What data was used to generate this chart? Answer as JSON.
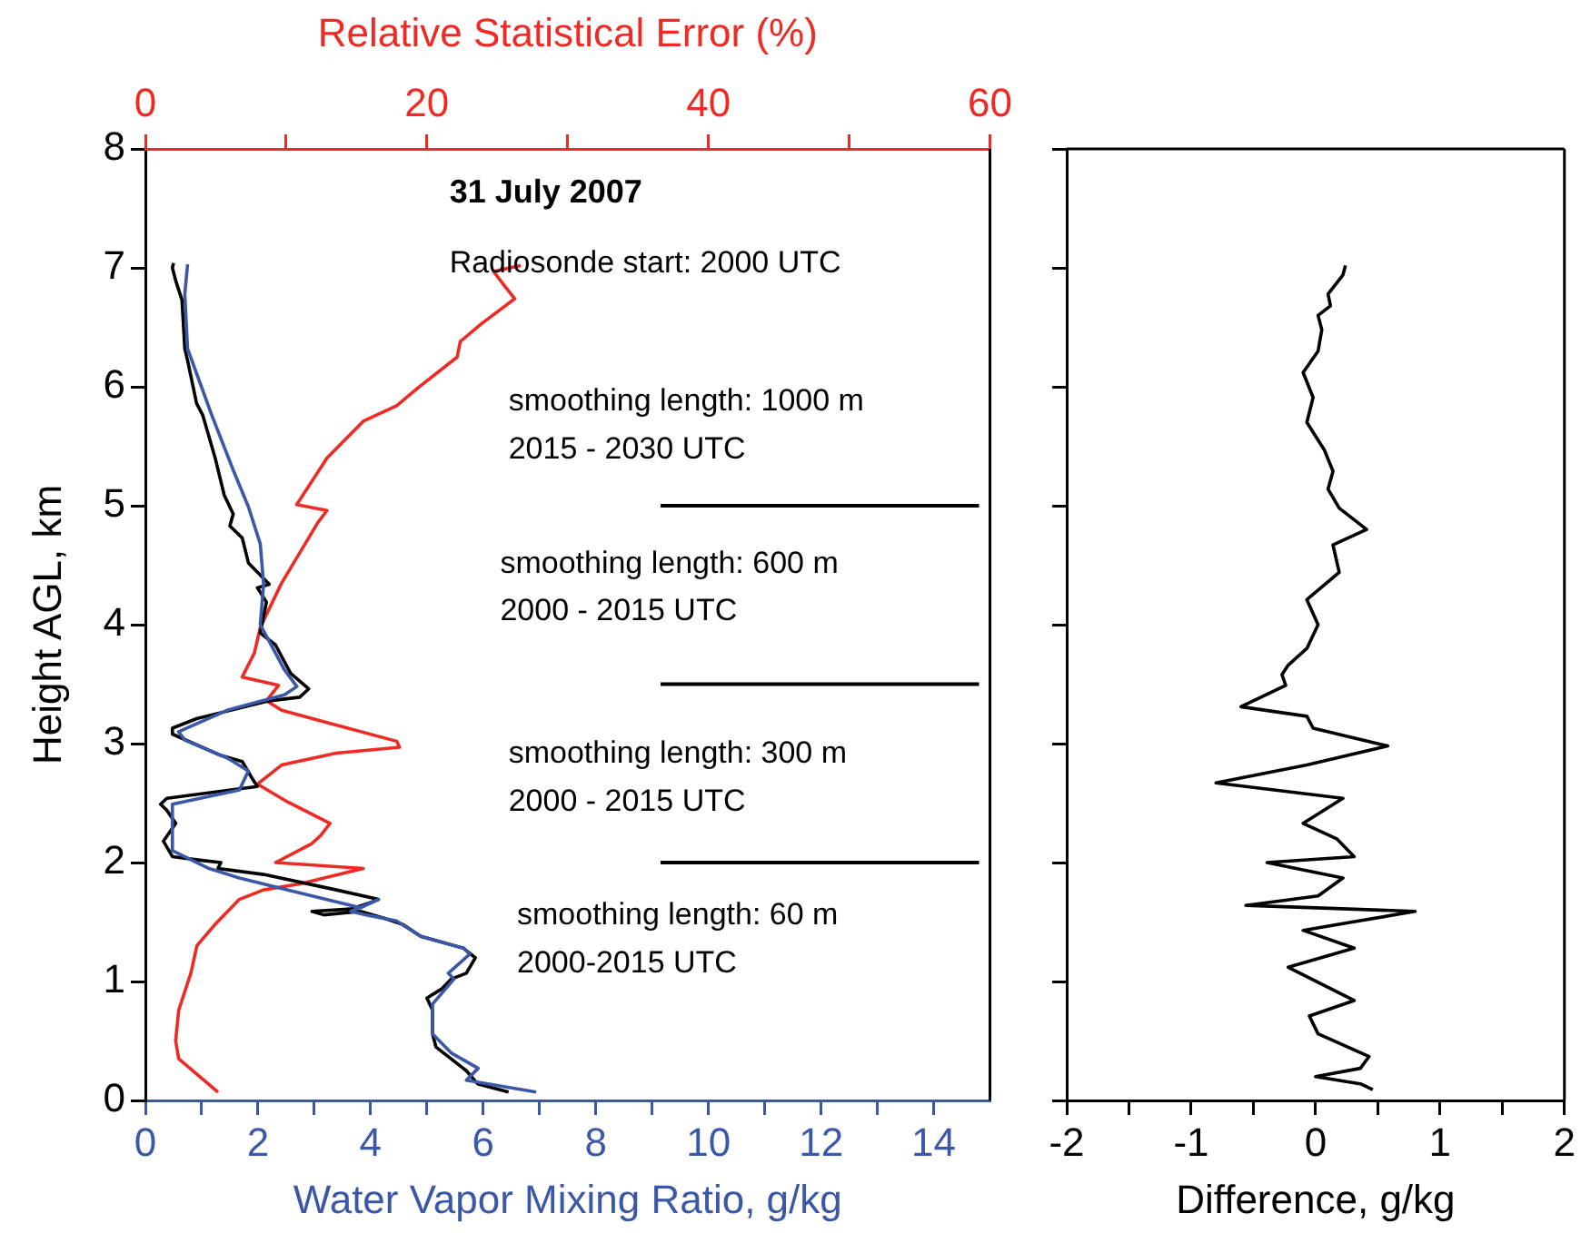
{
  "chart_data": [
    {
      "type": "line",
      "xlabel": "Water Vapor Mixing Ratio, g/kg",
      "x2label": "Relative Statistical Error (%)",
      "ylabel": "Height AGL, km",
      "xlim": [
        0,
        15
      ],
      "xticks": [
        0,
        {
          "value": 1,
          "label": null
        },
        2,
        {
          "value": 3,
          "label": null
        },
        4,
        {
          "value": 5,
          "label": null
        },
        6,
        {
          "value": 7,
          "label": null
        },
        8,
        {
          "value": 9,
          "label": null
        },
        10,
        {
          "value": 11,
          "label": null
        },
        12,
        {
          "value": 13,
          "label": null
        },
        14
      ],
      "x2lim": [
        0,
        60
      ],
      "x2ticks": [
        0,
        {
          "value": 10,
          "label": null
        },
        20,
        {
          "value": 30,
          "label": null
        },
        40,
        {
          "value": 50,
          "label": null
        },
        60
      ],
      "ylim": [
        0,
        8
      ],
      "yticks": [
        0,
        1,
        2,
        3,
        4,
        5,
        6,
        7,
        8
      ],
      "grid": false,
      "legend": false,
      "annotations": [
        "31 July 2007",
        "Radiosonde start: 2000 UTC",
        "smoothing length: 1000 m",
        "2015 - 2030 UTC",
        "smoothing length: 600 m",
        "2000 - 2015 UTC",
        "smoothing length: 300 m",
        "2000 - 2015 UTC",
        "smoothing length: 60 m",
        "2000-2015 UTC"
      ],
      "ref_lines": [
        {
          "axis": "y",
          "value": 5,
          "color": "#000000"
        },
        {
          "axis": "y",
          "value": 3.5,
          "color": "#000000"
        },
        {
          "axis": "y",
          "value": 2,
          "color": "#000000"
        }
      ],
      "series": [
        {
          "color": "#3b57a8",
          "x": [
            6.94,
            5.7,
            5.91,
            5.43,
            5.1,
            5.1,
            5.48,
            5.38,
            5.76,
            5.65,
            4.89,
            4.46,
            3.92,
            3.65,
            4.14,
            3.82,
            2.53,
            1.67,
            1.13,
            0.48,
            0.48,
            1.67,
            1.83,
            1.45,
            0.7,
            0.59,
            1.45,
            2.47,
            2.69,
            2.47,
            2.2,
            2.04,
            2.1,
            2.04,
            1.83,
            1.56,
            1.18,
            0.75,
            0.7,
            0.75
          ],
          "values": [
            0.07,
            0.17,
            0.27,
            0.4,
            0.56,
            0.81,
            1.02,
            1.07,
            1.23,
            1.28,
            1.38,
            1.51,
            1.56,
            1.59,
            1.69,
            1.62,
            1.77,
            1.87,
            1.95,
            2.1,
            2.49,
            2.61,
            2.77,
            2.88,
            3.03,
            3.1,
            3.28,
            3.41,
            3.48,
            3.62,
            3.86,
            4.0,
            4.34,
            4.68,
            4.99,
            5.3,
            5.76,
            6.32,
            6.78,
            7.03
          ]
        },
        {
          "color": "#000000",
          "x": [
            6.45,
            5.9,
            5.7,
            5.16,
            5.1,
            5.1,
            5.0,
            5.27,
            5.43,
            5.7,
            5.86,
            5.65,
            4.89,
            4.57,
            4.25,
            3.82,
            3.17,
            2.96,
            3.65,
            3.98,
            4.14,
            3.39,
            2.1,
            1.29,
            1.34,
            0.97,
            0.48,
            0.32,
            0.54,
            0.38,
            0.27,
            0.38,
            1.99,
            1.88,
            1.72,
            1.34,
            0.48,
            0.48,
            0.91,
            2.2,
            2.74,
            2.9,
            2.58,
            2.31,
            2.04,
            2.15,
            1.99,
            2.2,
            1.83,
            1.72,
            1.5,
            1.56,
            1.4,
            1.24,
            1.02,
            0.91,
            0.75,
            0.7,
            0.65,
            0.54,
            0.48,
            0.5
          ],
          "values": [
            0.07,
            0.14,
            0.25,
            0.45,
            0.56,
            0.76,
            0.86,
            0.94,
            1.02,
            1.07,
            1.2,
            1.28,
            1.38,
            1.48,
            1.53,
            1.59,
            1.56,
            1.59,
            1.61,
            1.66,
            1.69,
            1.77,
            1.9,
            1.95,
            2.0,
            2.02,
            2.05,
            2.18,
            2.33,
            2.44,
            2.49,
            2.54,
            2.64,
            2.72,
            2.85,
            2.9,
            3.08,
            3.13,
            3.21,
            3.36,
            3.39,
            3.46,
            3.59,
            3.83,
            3.93,
            4.19,
            4.31,
            4.34,
            4.52,
            4.73,
            4.83,
            4.93,
            5.09,
            5.4,
            5.76,
            5.86,
            6.22,
            6.32,
            6.73,
            6.89,
            7.0,
            7.04
          ]
        },
        {
          "color": "#ee2a24",
          "axis": "x2",
          "x": [
            5.16,
            3.66,
            2.37,
            2.15,
            2.37,
            3.23,
            3.66,
            4.95,
            6.02,
            6.67,
            8.39,
            10.97,
            15.48,
            9.25,
            11.83,
            12.47,
            13.12,
            10.1,
            7.96,
            9.68,
            13.55,
            18.06,
            17.85,
            13.12,
            9.68,
            8.6,
            9.46,
            6.88,
            7.74,
            8.17,
            9.68,
            12.26,
            12.9,
            10.75,
            12.9,
            15.48,
            17.85,
            19.35,
            22.15,
            22.37,
            23.87,
            26.24,
            25.38,
            24.73,
            26.67
          ],
          "values": [
            0.07,
            0.22,
            0.35,
            0.5,
            0.76,
            1.07,
            1.3,
            1.48,
            1.61,
            1.69,
            1.77,
            1.82,
            1.95,
            2.0,
            2.16,
            2.23,
            2.33,
            2.51,
            2.66,
            2.82,
            2.92,
            2.97,
            3.02,
            3.17,
            3.28,
            3.36,
            3.49,
            3.56,
            3.76,
            3.98,
            4.35,
            4.86,
            4.96,
            5.01,
            5.4,
            5.71,
            5.84,
            5.99,
            6.25,
            6.38,
            6.53,
            6.74,
            6.87,
            6.97,
            7.02
          ]
        }
      ]
    },
    {
      "type": "line",
      "xlabel": "Difference, g/kg",
      "xlim": [
        -2,
        2
      ],
      "xticks": [
        -2,
        {
          "value": -1.5,
          "label": null
        },
        -1,
        {
          "value": -0.5,
          "label": null
        },
        0,
        {
          "value": 0.5,
          "label": null
        },
        1,
        {
          "value": 1.5,
          "label": null
        },
        2
      ],
      "ylim": [
        0,
        8
      ],
      "yticks": [
        0,
        1,
        2,
        3,
        4,
        5,
        6,
        7,
        8
      ],
      "tick_labels": "x",
      "grid": false,
      "legend": false,
      "series": [
        {
          "color": "#000000",
          "x": [
            0.46,
            0.36,
            0.0,
            0.36,
            0.43,
            0.02,
            -0.05,
            0.31,
            -0.22,
            0.31,
            -0.1,
            0.8,
            -0.56,
            0.02,
            0.22,
            -0.39,
            0.31,
            0.17,
            -0.1,
            0.22,
            -0.8,
            -0.07,
            0.58,
            -0.02,
            -0.07,
            -0.6,
            -0.24,
            -0.27,
            -0.22,
            -0.07,
            0.02,
            -0.07,
            0.19,
            0.14,
            0.41,
            0.19,
            0.1,
            0.14,
            0.07,
            -0.07,
            -0.02,
            -0.1,
            0.02,
            0.05,
            0.02,
            0.12,
            0.1,
            0.22,
            0.24
          ],
          "values": [
            0.09,
            0.14,
            0.2,
            0.27,
            0.37,
            0.56,
            0.71,
            0.84,
            1.12,
            1.28,
            1.43,
            1.59,
            1.64,
            1.72,
            1.87,
            2.0,
            2.05,
            2.2,
            2.33,
            2.54,
            2.67,
            2.82,
            2.98,
            3.13,
            3.23,
            3.31,
            3.49,
            3.58,
            3.66,
            3.8,
            4.0,
            4.21,
            4.44,
            4.67,
            4.8,
            4.98,
            5.14,
            5.29,
            5.47,
            5.7,
            5.91,
            6.12,
            6.3,
            6.48,
            6.6,
            6.68,
            6.78,
            6.94,
            7.02
          ]
        }
      ]
    }
  ]
}
